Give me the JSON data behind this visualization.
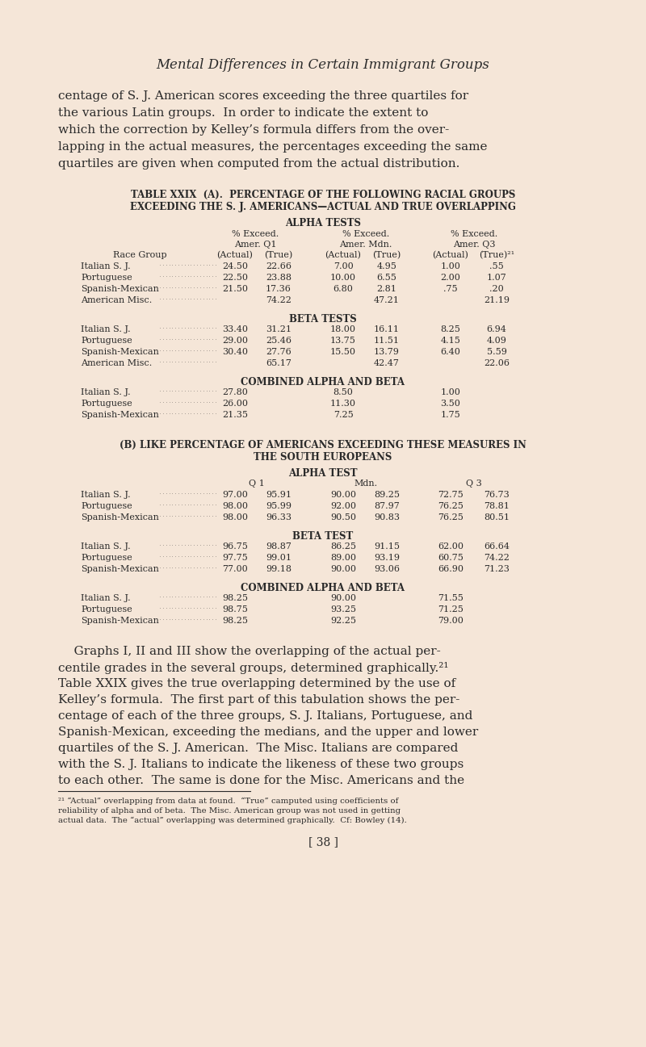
{
  "bg_color": "#f5e6d8",
  "text_color": "#2a2a2a",
  "page_title": "Mental Differences in Certain Immigrant Groups",
  "intro_text": [
    "centage of S. J. American scores exceeding the three quartiles for",
    "the various Latin groups.  In order to indicate the extent to",
    "which the correction by Kelley’s formula differs from the over-",
    "lapping in the actual measures, the percentages exceeding the same",
    "quartiles are given when computed from the actual distribution."
  ],
  "table_a_title1": "TABLE XXIX  (A).  PERCENTAGE OF THE FOLLOWING RACIAL GROUPS",
  "table_a_title2": "EXCEEDING THE S. J. AMERICANS—ACTUAL AND TRUE OVERLAPPING",
  "section_alpha": "ALPHA TESTS",
  "col_header1": "% Exceed.",
  "col_header1b": "Amer. Q1",
  "col_header2": "% Exceed.",
  "col_header2b": "Amer. Mdn.",
  "col_header3": "% Exceed.",
  "col_header3b": "Amer. Q3",
  "race_group_label": "Race Group",
  "actual_label": "(Actual)",
  "true_label": "(True)",
  "actual_label2": "(Actual)",
  "true_label2": "(True)",
  "actual_label3": "(Actual)",
  "true_label3": "(True)²¹",
  "alpha_rows": [
    [
      "Italian S. J.",
      "24.50",
      "22.66",
      "7.00",
      "4.95",
      "1.00",
      ".55"
    ],
    [
      "Portuguese",
      "22.50",
      "23.88",
      "10.00",
      "6.55",
      "2.00",
      "1.07"
    ],
    [
      "Spanish-Mexican",
      "21.50",
      "17.36",
      "6.80",
      "2.81",
      ".75",
      ".20"
    ],
    [
      "American Misc.",
      "",
      "74.22",
      "",
      "47.21",
      "",
      "21.19"
    ]
  ],
  "section_beta": "BETA TESTS",
  "beta_rows": [
    [
      "Italian S. J.",
      "33.40",
      "31.21",
      "18.00",
      "16.11",
      "8.25",
      "6.94"
    ],
    [
      "Portuguese",
      "29.00",
      "25.46",
      "13.75",
      "11.51",
      "4.15",
      "4.09"
    ],
    [
      "Spanish-Mexican",
      "30.40",
      "27.76",
      "15.50",
      "13.79",
      "6.40",
      "5.59"
    ],
    [
      "American Misc.",
      "",
      "65.17",
      "",
      "42.47",
      "",
      "22.06"
    ]
  ],
  "section_combined": "COMBINED ALPHA AND BETA",
  "combined_rows": [
    [
      "Italian S. J.",
      "27.80",
      "",
      "8.50",
      "",
      "1.00",
      ""
    ],
    [
      "Portuguese",
      "26.00",
      "",
      "11.30",
      "",
      "3.50",
      ""
    ],
    [
      "Spanish-Mexican",
      "21.35",
      "",
      "7.25",
      "",
      "1.75",
      ""
    ]
  ],
  "table_b_title1": "(B) LIKE PERCENTAGE OF AMERICANS EXCEEDING THESE MEASURES IN",
  "table_b_title2": "THE SOUTH EUROPEANS",
  "section_alpha_test": "ALPHA TEST",
  "b_col_q1": "Q 1",
  "b_col_mdn": "Mdn.",
  "b_col_q3": "Q 3",
  "b_alpha_rows": [
    [
      "Italian S. J.",
      "97.00",
      "95.91",
      "90.00",
      "89.25",
      "72.75",
      "76.73"
    ],
    [
      "Portuguese",
      "98.00",
      "95.99",
      "92.00",
      "87.97",
      "76.25",
      "78.81"
    ],
    [
      "Spanish-Mexican",
      "98.00",
      "96.33",
      "90.50",
      "90.83",
      "76.25",
      "80.51"
    ]
  ],
  "section_beta_test": "BETA TEST",
  "b_beta_rows": [
    [
      "Italian S. J.",
      "96.75",
      "98.87",
      "86.25",
      "91.15",
      "62.00",
      "66.64"
    ],
    [
      "Portuguese",
      "97.75",
      "99.01",
      "89.00",
      "93.19",
      "60.75",
      "74.22"
    ],
    [
      "Spanish-Mexican",
      "77.00",
      "99.18",
      "90.00",
      "93.06",
      "66.90",
      "71.23"
    ]
  ],
  "section_combined_ab": "COMBINED ALPHA AND BETA",
  "b_combined_rows": [
    [
      "Italian S. J.",
      "98.25",
      "",
      "90.00",
      "",
      "71.55",
      ""
    ],
    [
      "Portuguese",
      "98.75",
      "",
      "93.25",
      "",
      "71.25",
      ""
    ],
    [
      "Spanish-Mexican",
      "98.25",
      "",
      "92.25",
      "",
      "79.00",
      ""
    ]
  ],
  "para2_line1": "    Graphs I, II and III show the overlapping of the actual per-",
  "para2_lines": [
    "centile grades in the several groups, determined graphically.²¹",
    "Table XXIX gives the true overlapping determined by the use of",
    "Kelley’s formula.  The first part of this tabulation shows the per-",
    "centage of each of the three groups, S. J. Italians, Portuguese, and",
    "Spanish-Mexican, exceeding the medians, and the upper and lower",
    "quartiles of the S. J. American.  The Misc. Italians are compared",
    "with the S. J. Italians to indicate the likeness of these two groups",
    "to each other.  The same is done for the Misc. Americans and the"
  ],
  "footnote": [
    "²¹ “Actual” overlapping from data at found.  “True” camputed using coefficients of",
    "reliability of alpha and of beta.  The Misc. American group was not used in getting",
    "actual data.  The “actual” overlapping was determined graphically.  Cf: Bowley (14)."
  ],
  "page_number": "[ 38 ]"
}
